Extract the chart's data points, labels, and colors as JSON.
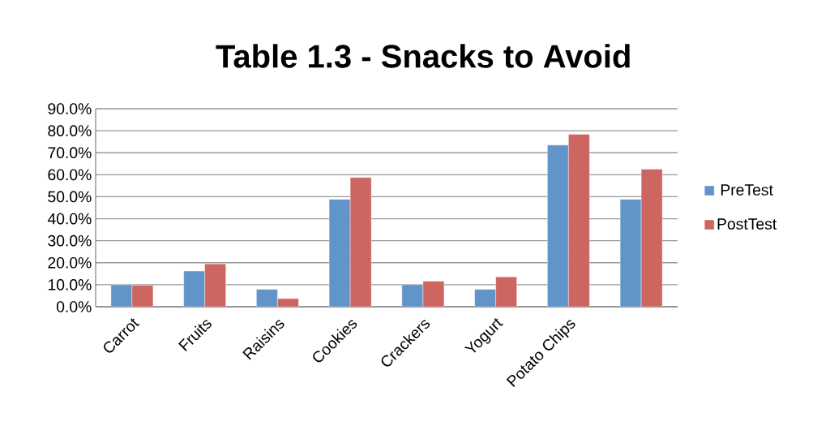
{
  "chart_data": {
    "type": "bar",
    "title": "Table 1.3 - Snacks to Avoid",
    "categories": [
      "Carrot",
      "Fruits",
      "Raisins",
      "Cookies",
      "Crackers",
      "Yogurt",
      "Potato Chips",
      null
    ],
    "series": [
      {
        "name": "PreTest",
        "color": "#6195c9",
        "values": [
          10,
          16.2,
          7.9,
          48.8,
          10,
          7.9,
          73.5,
          48.8
        ]
      },
      {
        "name": "PostTest",
        "color": "#cd6660",
        "values": [
          9.8,
          19.5,
          3.7,
          58.7,
          11.6,
          13.6,
          78.4,
          62.5
        ]
      }
    ],
    "ylim": [
      0,
      90
    ],
    "yticks": [
      {
        "value": 0,
        "label": "0.0%"
      },
      {
        "value": 10,
        "label": "10.0%"
      },
      {
        "value": 20,
        "label": "20.0%"
      },
      {
        "value": 30,
        "label": "30.0%"
      },
      {
        "value": 40,
        "label": "40.0%"
      },
      {
        "value": 50,
        "label": "50.0%"
      },
      {
        "value": 60,
        "label": "60.0%"
      },
      {
        "value": 70,
        "label": "70.0%"
      },
      {
        "value": 80,
        "label": "80.0%"
      },
      {
        "value": 90,
        "label": "90.0%"
      }
    ],
    "grid": "y",
    "legend": "right"
  }
}
